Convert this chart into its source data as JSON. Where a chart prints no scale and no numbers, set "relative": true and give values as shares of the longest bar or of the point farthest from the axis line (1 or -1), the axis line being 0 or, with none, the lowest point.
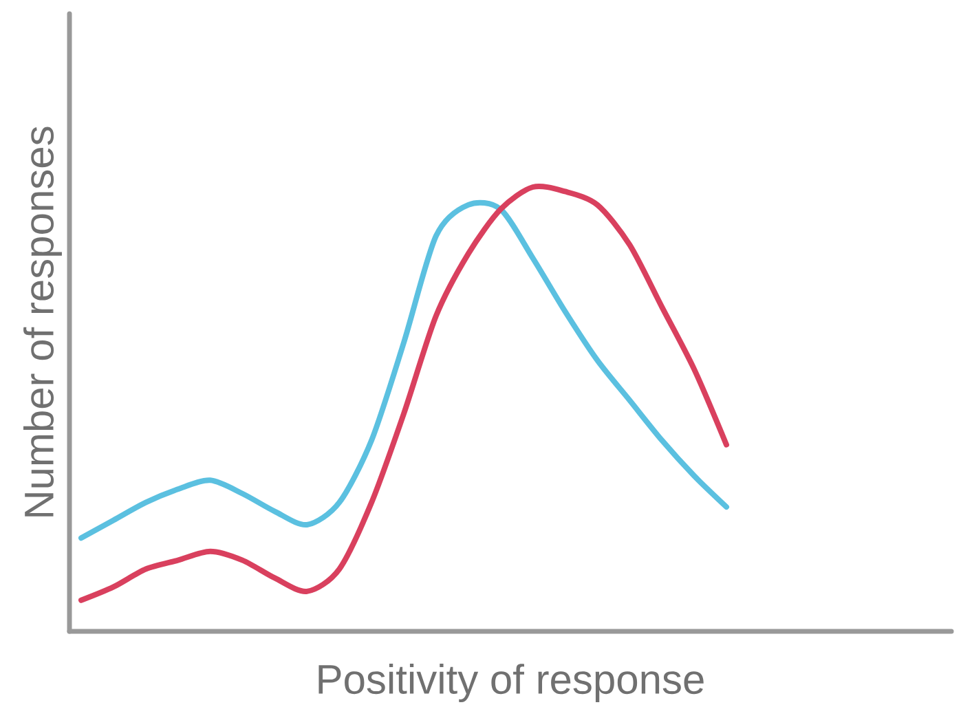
{
  "chart_data": {
    "type": "line",
    "relative": true,
    "xlabel": "Positivity of response",
    "ylabel": "Number of responses",
    "categories": [
      null,
      null,
      null,
      null,
      null,
      null,
      null,
      null,
      null,
      null,
      null,
      null,
      null,
      null,
      null,
      null,
      null,
      null,
      null,
      null,
      null
    ],
    "series": [
      {
        "color": "#5bc0e0",
        "values": [
          0.21,
          0.25,
          0.29,
          0.32,
          0.34,
          0.31,
          0.27,
          0.24,
          0.29,
          0.43,
          0.65,
          0.89,
          0.96,
          0.95,
          0.84,
          0.72,
          0.61,
          0.52,
          0.43,
          0.35,
          0.28
        ]
      },
      {
        "color": "#d9405e",
        "values": [
          0.07,
          0.1,
          0.14,
          0.16,
          0.18,
          0.16,
          0.12,
          0.09,
          0.14,
          0.29,
          0.49,
          0.71,
          0.85,
          0.95,
          1.0,
          0.99,
          0.96,
          0.87,
          0.73,
          0.59,
          0.42
        ]
      }
    ],
    "line_style": "solid",
    "marker": "none"
  }
}
